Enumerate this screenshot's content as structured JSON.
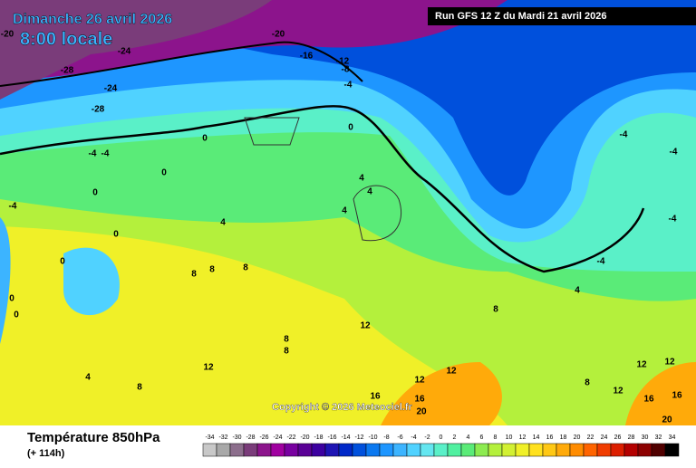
{
  "header": {
    "date": "Dimanche 26 avril 2026",
    "time": "8:00 locale",
    "run": "Run GFS 12 Z du Mardi 21 avril 2026"
  },
  "copyright": "Copyright © 2026 Meteociel.fr",
  "footer": {
    "title": "Température 850hPa",
    "lead": "(+ 114h)"
  },
  "colorbar": {
    "labels": [
      -34,
      -32,
      -30,
      -28,
      -26,
      -24,
      -22,
      -20,
      -18,
      -16,
      -14,
      -12,
      -10,
      -8,
      -6,
      -4,
      -2,
      0,
      2,
      4,
      6,
      8,
      10,
      12,
      14,
      16,
      18,
      20,
      22,
      24,
      26,
      28,
      30,
      32,
      34
    ],
    "colors": [
      "#c8c8c8",
      "#a8a8a8",
      "#8c6e8c",
      "#7a3c7a",
      "#8c148c",
      "#a000a0",
      "#7800a0",
      "#5a0096",
      "#3c00a0",
      "#1e14b4",
      "#0028c8",
      "#0050dc",
      "#0a78f0",
      "#1e96ff",
      "#3cb4ff",
      "#50d2ff",
      "#64e6f0",
      "#5af0c8",
      "#50f0a0",
      "#5aeb78",
      "#8ceb50",
      "#b4f03c",
      "#d2f032",
      "#f0f028",
      "#ffe11e",
      "#ffc814",
      "#ffaa0a",
      "#ff8c00",
      "#ff6400",
      "#f03c00",
      "#dc1e00",
      "#b40000",
      "#8c0000",
      "#500000",
      "#000000"
    ]
  },
  "contour_labels": [
    "-20",
    "-24",
    "-28",
    "-24",
    "-28",
    "-20",
    "-16",
    "-12",
    "-8",
    "-4",
    "0",
    "0",
    "-4",
    "-4",
    "0",
    "0",
    "-4",
    "4",
    "4",
    "4",
    "4",
    "0",
    "0",
    "8",
    "8",
    "8",
    "0",
    "0",
    "12",
    "8",
    "8",
    "4",
    "12",
    "8",
    "12",
    "12",
    "16",
    "16",
    "20",
    "-4",
    "-4",
    "-4",
    "-4",
    "4",
    "8",
    "12",
    "12",
    "16",
    "16",
    "20",
    "8",
    "12"
  ]
}
